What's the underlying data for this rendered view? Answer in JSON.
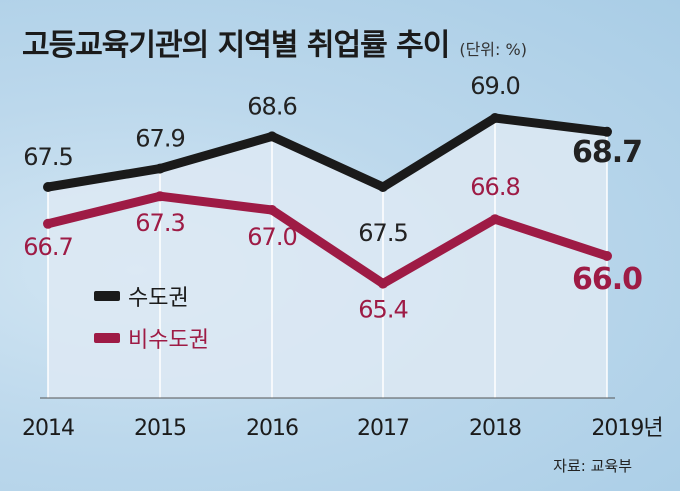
{
  "title": "고등교육기관의 지역별 취업률 추이",
  "unit": "(단위: %)",
  "source": "자료: 교육부",
  "chart_data": {
    "type": "line",
    "x": [
      "2014",
      "2015",
      "2016",
      "2017",
      "2018",
      "2019년"
    ],
    "series": [
      {
        "name": "수도권",
        "values": [
          67.5,
          67.9,
          68.6,
          67.5,
          69.0,
          68.7
        ],
        "color": "#1a1a1a"
      },
      {
        "name": "비수도권",
        "values": [
          66.7,
          67.3,
          67.0,
          65.4,
          66.8,
          66.0
        ],
        "color": "#9e1b45"
      }
    ],
    "value_labels": [
      [
        "67.5",
        "67.9",
        "68.6",
        "67.5",
        "69.0",
        "68.7"
      ],
      [
        "66.7",
        "67.3",
        "67.0",
        "65.4",
        "66.8",
        "66.0"
      ]
    ],
    "legend_position": "left-middle",
    "grid": false
  },
  "colors": {
    "background": "#b9d6ea",
    "plot_area": "#dde9f3",
    "capital": "#1a1a1a",
    "noncapital": "#9e1b45"
  }
}
